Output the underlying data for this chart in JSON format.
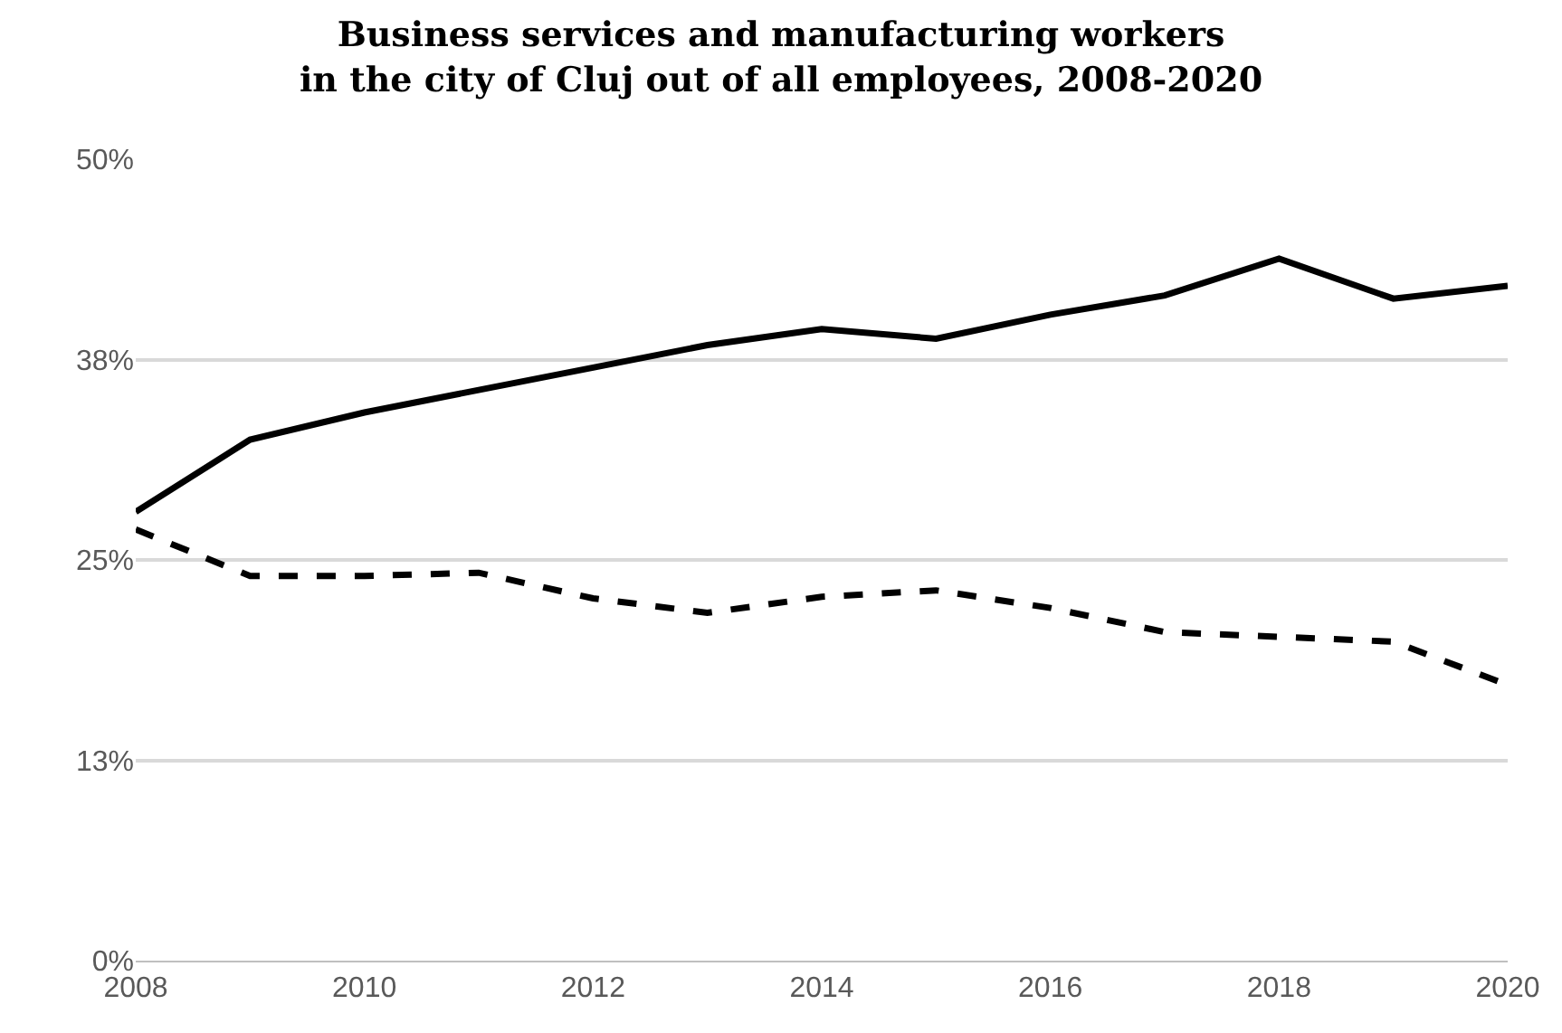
{
  "chart_data": {
    "type": "line",
    "title": "Business services and manufacturing workers\nin the city of Cluj out of all employees, 2008-2020",
    "x": [
      2008,
      2009,
      2010,
      2011,
      2012,
      2013,
      2014,
      2015,
      2016,
      2017,
      2018,
      2019,
      2020
    ],
    "series": [
      {
        "color": "#000000",
        "line_style": "solid",
        "values": [
          28.0,
          32.5,
          34.2,
          35.6,
          37.0,
          38.4,
          39.4,
          38.8,
          40.3,
          41.5,
          43.8,
          41.3,
          42.1
        ]
      },
      {
        "color": "#000000",
        "line_style": "dashed",
        "values": [
          26.9,
          24.0,
          24.0,
          24.2,
          22.6,
          21.7,
          22.7,
          23.1,
          22.0,
          20.5,
          20.2,
          19.9,
          17.2
        ]
      }
    ],
    "xlim": [
      2008,
      2020
    ],
    "xticks": [
      2008,
      2010,
      2012,
      2014,
      2016,
      2018,
      2020
    ],
    "ylim": [
      0,
      50
    ],
    "yticks": [
      {
        "value": 0,
        "label": "0%"
      },
      {
        "value": 12.5,
        "label": "13%"
      },
      {
        "value": 25,
        "label": "25%"
      },
      {
        "value": 37.5,
        "label": "38%"
      },
      {
        "value": 50,
        "label": "50%"
      }
    ],
    "grid": "y"
  }
}
